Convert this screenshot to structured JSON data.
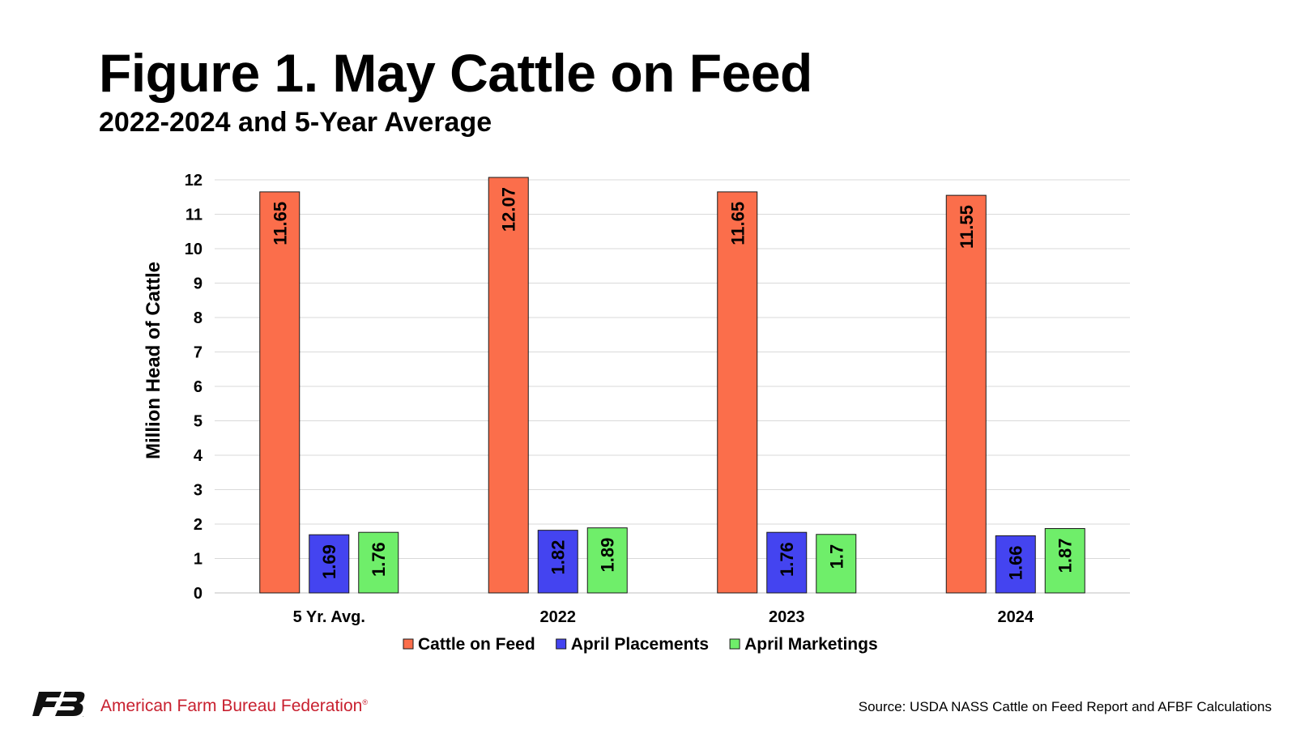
{
  "title": "Figure 1. May Cattle on Feed",
  "subtitle": "2022-2024 and 5-Year Average",
  "chart_data": {
    "type": "bar",
    "categories": [
      "5 Yr. Avg.",
      "2022",
      "2023",
      "2024"
    ],
    "series": [
      {
        "name": "Cattle on Feed",
        "color": "#fb6e4b",
        "values": [
          11.65,
          12.07,
          11.65,
          11.55
        ]
      },
      {
        "name": "April Placements",
        "color": "#4444f0",
        "values": [
          1.69,
          1.82,
          1.76,
          1.66
        ]
      },
      {
        "name": "April Marketings",
        "color": "#6fee6a",
        "values": [
          1.76,
          1.89,
          1.7,
          1.87
        ]
      }
    ],
    "ylabel": "Million Head of Cattle",
    "xlabel": "",
    "ylim": [
      0,
      12
    ],
    "yticks": [
      0,
      1,
      2,
      3,
      4,
      5,
      6,
      7,
      8,
      9,
      10,
      11,
      12
    ],
    "grid": true,
    "legend_position": "bottom",
    "data_labels": true
  },
  "footer": {
    "logo_icon": "afbf-logo-icon",
    "organization": "American Farm Bureau Federation",
    "registered_mark": "®",
    "source": "Source: USDA NASS Cattle on Feed Report and AFBF Calculations"
  }
}
